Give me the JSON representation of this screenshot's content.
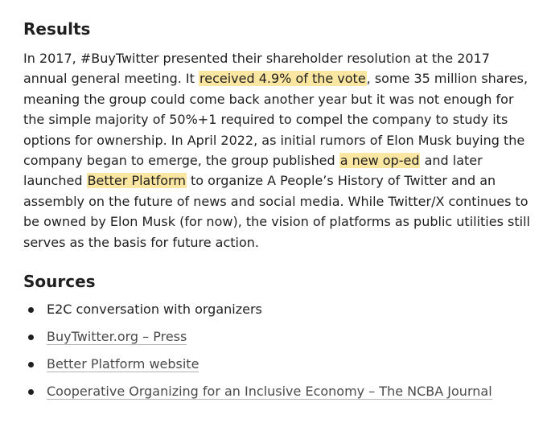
{
  "results": {
    "heading": "Results",
    "text_1": "In 2017, #BuyTwitter presented their shareholder resolution at the 2017 annual general meeting. It ",
    "link_1": "received 4.9% of the vote",
    "text_2": ", some 35 million shares, meaning the group could come back another year but it was not enough for the simple majority of 50%+1 required to compel the company to study its options for ownership. In April 2022, as initial rumors of Elon Musk buying the company began to emerge, the group published ",
    "link_2": "a new op-ed",
    "text_3": " and later launched ",
    "link_3": "Better Platform",
    "text_4": " to organize A People’s History of Twitter and an assembly on the future of news and social media. While Twitter/X continues to be owned by Elon Musk (for now), the vision of platforms as public utilities still serves as the basis for future action."
  },
  "sources": {
    "heading": "Sources",
    "items": [
      {
        "label": "E2C conversation with organizers",
        "is_link": false
      },
      {
        "label": "BuyTwitter.org – Press",
        "is_link": true
      },
      {
        "label": "Better Platform website",
        "is_link": true
      },
      {
        "label": "Cooperative Organizing for an Inclusive Economy – The NCBA Journal",
        "is_link": true
      }
    ]
  },
  "colors": {
    "highlight": "#fbe7a1",
    "text": "#1f1f1f",
    "link_text": "#4a4a4a",
    "link_underline": "#b5b5b5"
  }
}
